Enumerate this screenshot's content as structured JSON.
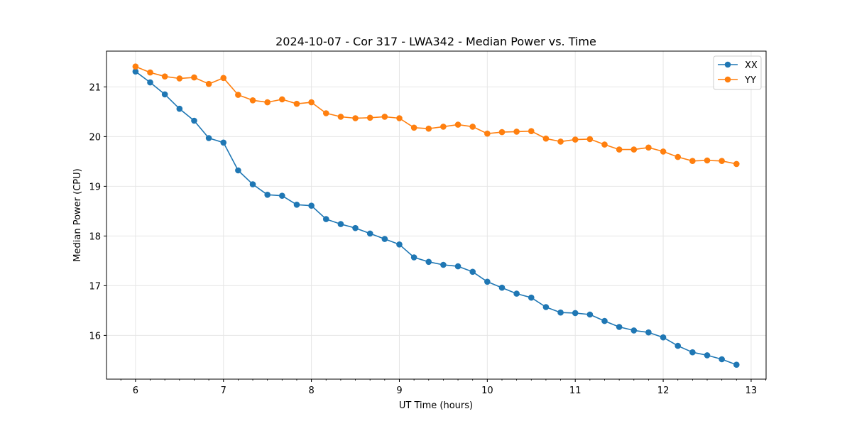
{
  "chart_data": {
    "type": "line",
    "title": "2024-10-07 - Cor 317 - LWA342 - Median Power vs. Time",
    "xlabel": "UT Time (hours)",
    "ylabel": "Median Power (CPU)",
    "xlim": [
      5.67,
      13.17
    ],
    "ylim": [
      15.12,
      21.72
    ],
    "xticks": [
      6,
      7,
      8,
      9,
      10,
      11,
      12,
      13
    ],
    "xtick_labels": [
      "6",
      "7",
      "8",
      "9",
      "10",
      "11",
      "12",
      "13"
    ],
    "yticks": [
      16,
      17,
      18,
      19,
      20,
      21
    ],
    "ytick_labels": [
      "16",
      "17",
      "18",
      "19",
      "20",
      "21"
    ],
    "grid": true,
    "legend_position": "top-right",
    "x": [
      6.0,
      6.1667,
      6.3333,
      6.5,
      6.6667,
      6.8333,
      7.0,
      7.1667,
      7.3333,
      7.5,
      7.6667,
      7.8333,
      8.0,
      8.1667,
      8.3333,
      8.5,
      8.6667,
      8.8333,
      9.0,
      9.1667,
      9.3333,
      9.5,
      9.6667,
      9.8333,
      10.0,
      10.1667,
      10.3333,
      10.5,
      10.6667,
      10.8333,
      11.0,
      11.1667,
      11.3333,
      11.5,
      11.6667,
      11.8333,
      12.0,
      12.1667,
      12.3333,
      12.5,
      12.6667,
      12.8333
    ],
    "series": [
      {
        "name": "XX",
        "color": "#1f77b4",
        "values": [
          21.31,
          21.09,
          20.85,
          20.56,
          20.32,
          19.97,
          19.88,
          19.32,
          19.04,
          18.83,
          18.81,
          18.63,
          18.61,
          18.34,
          18.24,
          18.16,
          18.05,
          17.94,
          17.83,
          17.57,
          17.48,
          17.42,
          17.39,
          17.28,
          17.08,
          16.96,
          16.84,
          16.76,
          16.57,
          16.46,
          16.45,
          16.42,
          16.29,
          16.17,
          16.1,
          16.06,
          15.96,
          15.79,
          15.66,
          15.6,
          15.52,
          15.41
        ]
      },
      {
        "name": "YY",
        "color": "#ff7f0e",
        "values": [
          21.41,
          21.29,
          21.21,
          21.17,
          21.19,
          21.06,
          21.18,
          20.84,
          20.73,
          20.69,
          20.75,
          20.66,
          20.69,
          20.47,
          20.4,
          20.37,
          20.38,
          20.4,
          20.37,
          20.18,
          20.16,
          20.2,
          20.24,
          20.2,
          20.06,
          20.09,
          20.1,
          20.11,
          19.96,
          19.9,
          19.94,
          19.95,
          19.84,
          19.74,
          19.74,
          19.78,
          19.7,
          19.59,
          19.51,
          19.52,
          19.51,
          19.45
        ]
      }
    ]
  }
}
